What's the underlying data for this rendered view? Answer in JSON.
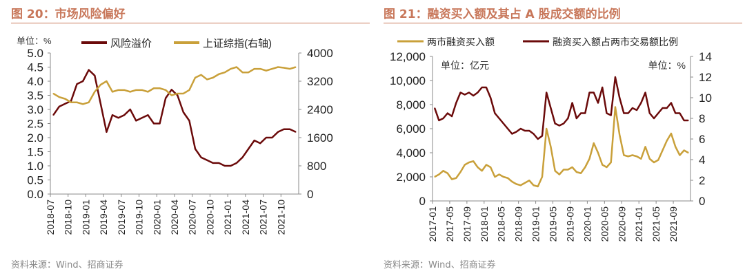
{
  "figures": [
    {
      "title": "图 20：市场风险偏好",
      "source": "资料来源：Wind、招商证券"
    },
    {
      "title": "图 21：融资买入额及其占 A 股成交额的比例",
      "source": "资料来源：Wind、招商证券"
    }
  ],
  "colors": {
    "dark_red": "#6b0a0a",
    "gold": "#c9a03a",
    "title": "#c8775a"
  },
  "chart_data": [
    {
      "type": "line",
      "unit_left": "单位：%",
      "ylim": [
        0,
        5
      ],
      "ylim_right": [
        0,
        4000
      ],
      "yticks": [
        "0.0",
        "0.5",
        "1.0",
        "1.5",
        "2.0",
        "2.5",
        "3.0",
        "3.5",
        "4.0",
        "4.5",
        "5.0"
      ],
      "yticks_right": [
        "0",
        "800",
        "1600",
        "2400",
        "3200",
        "4000"
      ],
      "xticks": [
        "2018-07",
        "2018-10",
        "2019-01",
        "2019-04",
        "2019-07",
        "2019-10",
        "2020-01",
        "2020-04",
        "2020-07",
        "2020-10",
        "2021-01",
        "2021-04",
        "2021-07",
        "2021-10"
      ],
      "x_start": "2018-07",
      "legend": "top",
      "series": [
        {
          "name": "风险溢价",
          "axis": "left",
          "color": "#6b0a0a",
          "values": [
            2.8,
            3.1,
            3.2,
            3.3,
            3.9,
            4.0,
            4.4,
            4.2,
            3.2,
            2.2,
            2.8,
            2.7,
            2.8,
            3.0,
            2.6,
            2.7,
            2.8,
            2.5,
            2.5,
            3.4,
            3.7,
            3.5,
            2.9,
            2.6,
            1.6,
            1.3,
            1.2,
            1.1,
            1.1,
            1.0,
            1.0,
            1.1,
            1.3,
            1.6,
            1.9,
            1.8,
            2.0,
            2.0,
            2.2,
            2.3,
            2.3,
            2.2
          ]
        },
        {
          "name": "上证综指(右轴)",
          "axis": "right",
          "color": "#c9a03a",
          "values": [
            2850,
            2750,
            2700,
            2600,
            2600,
            2550,
            2600,
            2900,
            3100,
            3200,
            2900,
            2950,
            2950,
            2900,
            2950,
            2950,
            2900,
            3000,
            3000,
            2950,
            2800,
            2850,
            2850,
            2950,
            3300,
            3380,
            3250,
            3300,
            3400,
            3450,
            3550,
            3600,
            3450,
            3450,
            3550,
            3550,
            3500,
            3550,
            3600,
            3580,
            3550,
            3600
          ]
        }
      ]
    },
    {
      "type": "line",
      "unit_left": "单位：亿元",
      "unit_right": "单位：%",
      "ylim": [
        0,
        12000
      ],
      "ylim_right": [
        0,
        14
      ],
      "yticks": [
        "0",
        "2,000",
        "4,000",
        "6,000",
        "8,000",
        "10,000",
        "12,000"
      ],
      "yticks_right": [
        "0",
        "2",
        "4",
        "6",
        "8",
        "10",
        "12",
        "14"
      ],
      "xticks": [
        "2017-01",
        "2017-05",
        "2017-09",
        "2018-01",
        "2018-05",
        "2018-09",
        "2019-01",
        "2019-05",
        "2019-09",
        "2020-01",
        "2020-05",
        "2020-09",
        "2021-01",
        "2021-05",
        "2021-09"
      ],
      "x_start": "2017-01",
      "legend": "top",
      "series": [
        {
          "name": "两市融资买入额",
          "axis": "left",
          "color": "#c9a03a",
          "values": [
            2000,
            2200,
            2500,
            2300,
            1800,
            1900,
            2400,
            3000,
            3200,
            3300,
            2800,
            2500,
            3000,
            2800,
            2000,
            2200,
            2000,
            1900,
            1600,
            1400,
            1300,
            1500,
            1700,
            1300,
            1200,
            2000,
            6000,
            4500,
            2500,
            2200,
            2600,
            2600,
            2800,
            2400,
            2300,
            2800,
            3500,
            4800,
            4000,
            3000,
            2800,
            3200,
            7800,
            5500,
            3800,
            3700,
            3800,
            3700,
            3500,
            4500,
            3500,
            3200,
            3400,
            4200,
            5000,
            5600,
            4500,
            3800,
            4200,
            4000
          ]
        },
        {
          "name": "融资买入额占两市交易额比例",
          "axis": "right",
          "color": "#6b0a0a",
          "values": [
            9,
            7.8,
            8,
            8.5,
            8.2,
            9.5,
            10.5,
            10.3,
            10.5,
            10.2,
            10.5,
            11,
            11,
            10,
            8.5,
            8,
            7.5,
            7,
            6.5,
            6.7,
            7,
            6.8,
            6.8,
            6.5,
            6,
            6.3,
            10.5,
            9,
            7.5,
            7.3,
            7.5,
            8,
            9.5,
            8,
            8.5,
            8.5,
            10.5,
            10.5,
            9.5,
            11,
            8.5,
            8.3,
            12,
            10,
            8.5,
            8.5,
            9,
            8.8,
            9.5,
            10.5,
            8.5,
            8,
            8.5,
            9,
            9,
            9.5,
            8.5,
            8.5,
            7.8,
            7.8
          ]
        }
      ]
    }
  ]
}
